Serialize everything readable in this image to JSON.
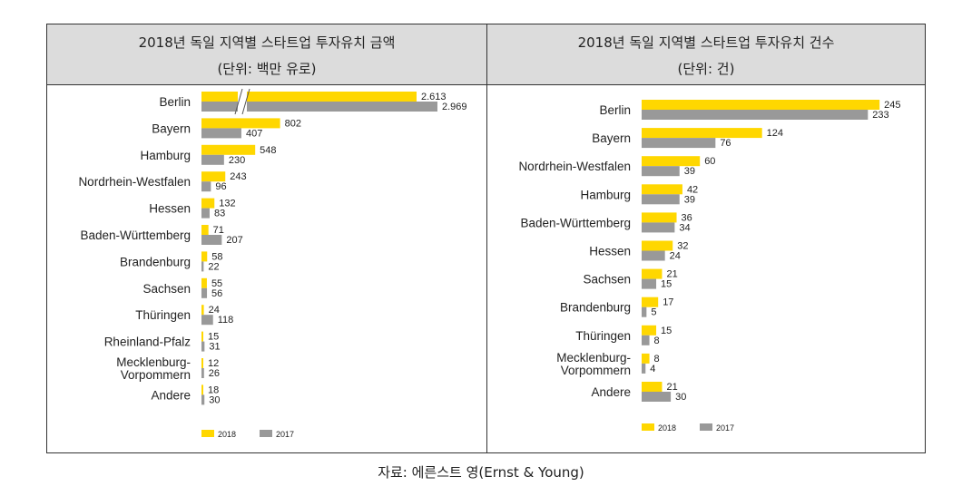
{
  "source": "자료: 에른스트 영(Ernst & Young)",
  "colors": {
    "y2018": "#ffd700",
    "y2017": "#999999",
    "text": "#222222"
  },
  "chart_data": [
    {
      "type": "bar",
      "orientation": "horizontal",
      "title": "2018년 독일 지역별 스타트업 투자유치 금액",
      "subtitle": "(단위: 백만 유로)",
      "axis_break": "Berlin bars truncated with break marks",
      "categories": [
        "Berlin",
        "Bayern",
        "Hamburg",
        "Nordrhein-Westfalen",
        "Hessen",
        "Baden-Württemberg",
        "Brandenburg",
        "Sachsen",
        "Thüringen",
        "Rheinland-Pfalz",
        "Mecklenburg-|Vorpommern",
        "Andere"
      ],
      "series": [
        {
          "name": "2018",
          "values": [
            2613,
            802,
            548,
            243,
            132,
            71,
            58,
            55,
            24,
            15,
            12,
            18
          ],
          "labels": [
            "2.613",
            "802",
            "548",
            "243",
            "132",
            "71",
            "58",
            "55",
            "24",
            "15",
            "12",
            "18"
          ]
        },
        {
          "name": "2017",
          "values": [
            2969,
            407,
            230,
            96,
            83,
            207,
            22,
            56,
            118,
            31,
            26,
            30
          ],
          "labels": [
            "2.969",
            "407",
            "230",
            "96",
            "83",
            "207",
            "22",
            "56",
            "118",
            "31",
            "26",
            "30"
          ]
        }
      ],
      "legend": [
        "2018",
        "2017"
      ]
    },
    {
      "type": "bar",
      "orientation": "horizontal",
      "title": "2018년 독일 지역별 스타트업 투자유치 건수",
      "subtitle": "(단위: 건)",
      "categories": [
        "Berlin",
        "Bayern",
        "Nordrhein-Westfalen",
        "Hamburg",
        "Baden-Württemberg",
        "Hessen",
        "Sachsen",
        "Brandenburg",
        "Thüringen",
        "Mecklenburg-|Vorpommern",
        "Andere"
      ],
      "series": [
        {
          "name": "2018",
          "values": [
            245,
            124,
            60,
            42,
            36,
            32,
            21,
            17,
            15,
            8,
            21
          ],
          "labels": [
            "245",
            "124",
            "60",
            "42",
            "36",
            "32",
            "21",
            "17",
            "15",
            "8",
            "21"
          ]
        },
        {
          "name": "2017",
          "values": [
            233,
            76,
            39,
            39,
            34,
            24,
            15,
            5,
            8,
            4,
            30
          ],
          "labels": [
            "233",
            "76",
            "39",
            "39",
            "34",
            "24",
            "15",
            "5",
            "8",
            "4",
            "30"
          ]
        }
      ],
      "legend": [
        "2018",
        "2017"
      ]
    }
  ]
}
